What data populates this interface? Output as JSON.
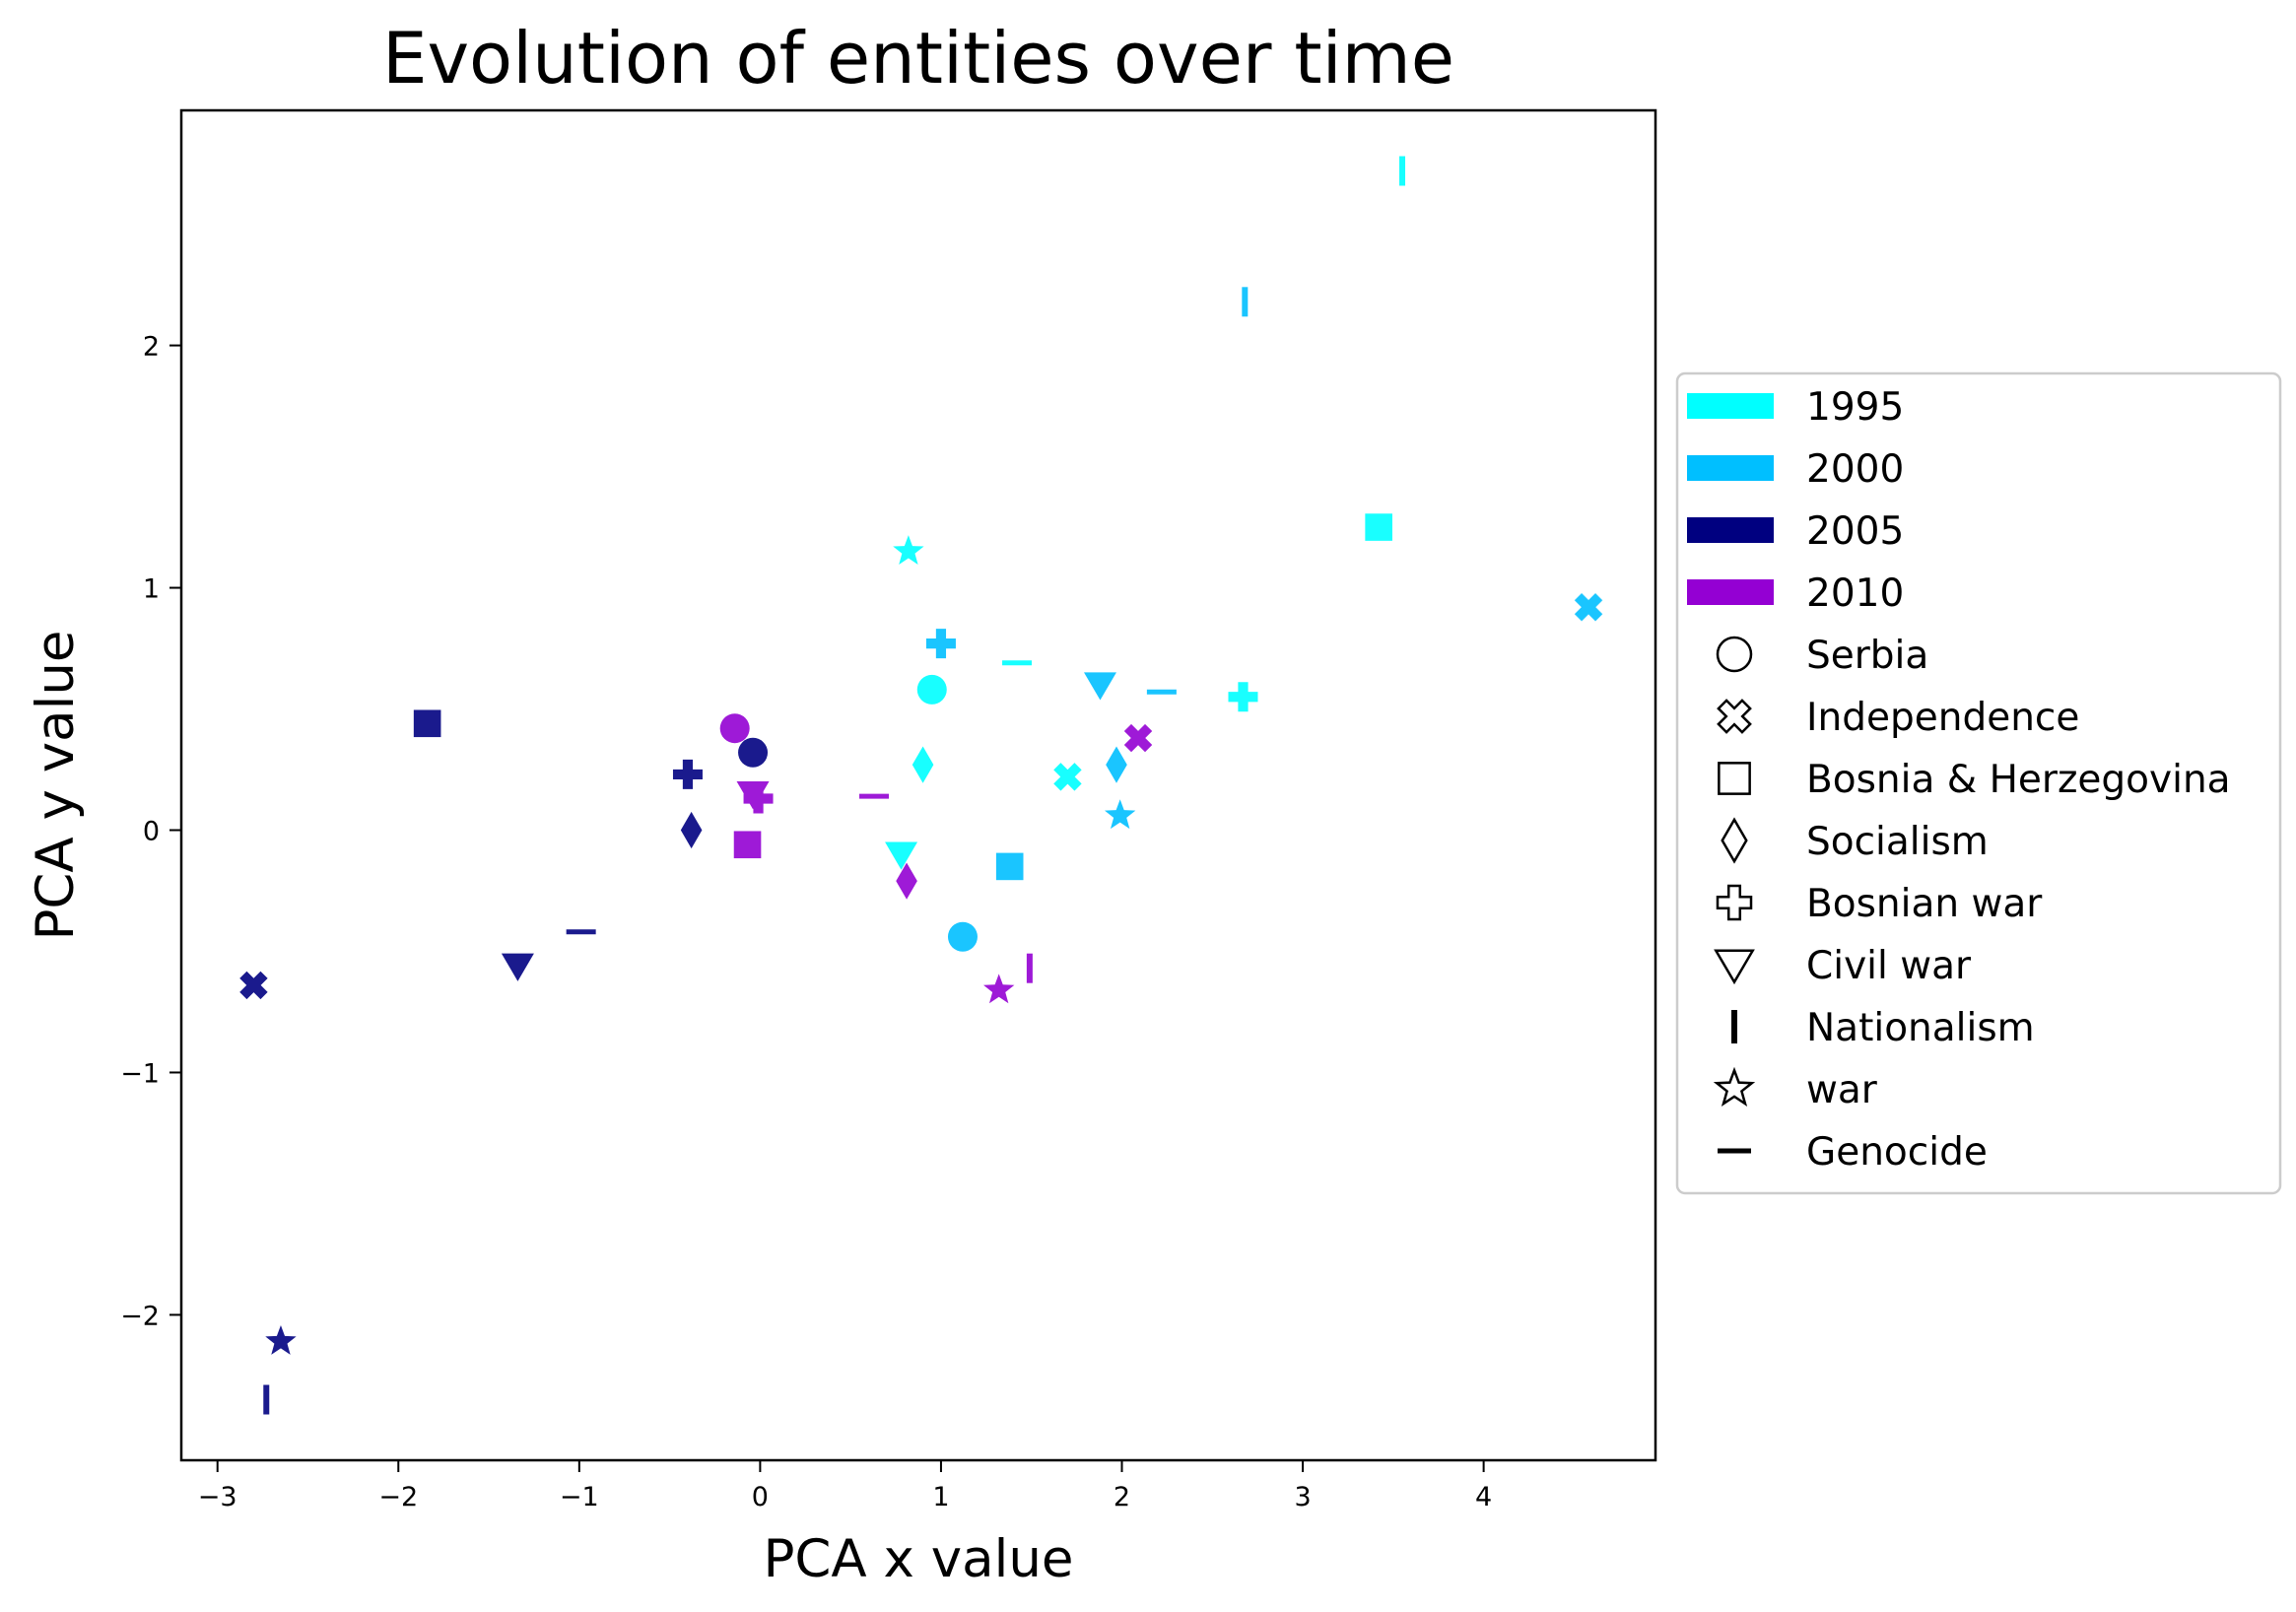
{
  "chart_data": {
    "type": "scatter",
    "title": "Evolution of entities over time",
    "xlabel": "PCA x value",
    "ylabel": "PCA y value",
    "xlim": [
      -3.2,
      4.95
    ],
    "ylim": [
      -2.6,
      2.97
    ],
    "xticks": [
      -3,
      -2,
      -1,
      0,
      1,
      2,
      3,
      4
    ],
    "yticks": [
      -2,
      -1,
      0,
      1,
      2
    ],
    "xtick_labels": [
      "−3",
      "−2",
      "−1",
      "0",
      "1",
      "2",
      "3",
      "4"
    ],
    "ytick_labels": [
      "−2",
      "−1",
      "0",
      "1",
      "2"
    ],
    "grid": false,
    "legend_position": "outside-right",
    "years": [
      {
        "label": "1995",
        "color": "#00FFFF"
      },
      {
        "label": "2000",
        "color": "#00BFFF"
      },
      {
        "label": "2005",
        "color": "#000080"
      },
      {
        "label": "2010",
        "color": "#9400D3"
      }
    ],
    "entities": [
      {
        "label": "Serbia",
        "marker": "circle"
      },
      {
        "label": "Independence",
        "marker": "x-filled"
      },
      {
        "label": "Bosnia & Herzegovina",
        "marker": "square"
      },
      {
        "label": "Socialism",
        "marker": "thin-diamond"
      },
      {
        "label": "Bosnian war",
        "marker": "plus-filled"
      },
      {
        "label": "Civil war",
        "marker": "triangle-down"
      },
      {
        "label": "Nationalism",
        "marker": "vline"
      },
      {
        "label": "war",
        "marker": "star"
      },
      {
        "label": "Genocide",
        "marker": "hline"
      }
    ],
    "series": [
      {
        "year": "1995",
        "points": [
          {
            "entity": "Serbia",
            "x": 0.95,
            "y": 0.58
          },
          {
            "entity": "Independence",
            "x": 1.7,
            "y": 0.22
          },
          {
            "entity": "Bosnia & Herzegovina",
            "x": 3.42,
            "y": 1.25
          },
          {
            "entity": "Socialism",
            "x": 0.9,
            "y": 0.27
          },
          {
            "entity": "Bosnian war",
            "x": 2.67,
            "y": 0.55
          },
          {
            "entity": "Civil war",
            "x": 0.78,
            "y": -0.1
          },
          {
            "entity": "Nationalism",
            "x": 3.55,
            "y": 2.72
          },
          {
            "entity": "war",
            "x": 0.82,
            "y": 1.15
          },
          {
            "entity": "Genocide",
            "x": 1.42,
            "y": 0.69
          }
        ]
      },
      {
        "year": "2000",
        "points": [
          {
            "entity": "Serbia",
            "x": 1.12,
            "y": -0.44
          },
          {
            "entity": "Independence",
            "x": 4.58,
            "y": 0.92
          },
          {
            "entity": "Bosnia & Herzegovina",
            "x": 1.38,
            "y": -0.15
          },
          {
            "entity": "Socialism",
            "x": 1.97,
            "y": 0.27
          },
          {
            "entity": "Bosnian war",
            "x": 1.0,
            "y": 0.77
          },
          {
            "entity": "Civil war",
            "x": 1.88,
            "y": 0.6
          },
          {
            "entity": "Nationalism",
            "x": 2.68,
            "y": 2.18
          },
          {
            "entity": "war",
            "x": 1.99,
            "y": 0.06
          },
          {
            "entity": "Genocide",
            "x": 2.22,
            "y": 0.57
          }
        ]
      },
      {
        "year": "2005",
        "points": [
          {
            "entity": "Serbia",
            "x": -0.04,
            "y": 0.32
          },
          {
            "entity": "Independence",
            "x": -2.8,
            "y": -0.64
          },
          {
            "entity": "Bosnia & Herzegovina",
            "x": -1.84,
            "y": 0.44
          },
          {
            "entity": "Socialism",
            "x": -0.38,
            "y": 0.0
          },
          {
            "entity": "Bosnian war",
            "x": -0.4,
            "y": 0.23
          },
          {
            "entity": "Civil war",
            "x": -1.34,
            "y": -0.56
          },
          {
            "entity": "Nationalism",
            "x": -2.73,
            "y": -2.35
          },
          {
            "entity": "war",
            "x": -2.65,
            "y": -2.11
          },
          {
            "entity": "Genocide",
            "x": -0.99,
            "y": -0.42
          }
        ]
      },
      {
        "year": "2010",
        "points": [
          {
            "entity": "Serbia",
            "x": -0.14,
            "y": 0.42
          },
          {
            "entity": "Independence",
            "x": 2.09,
            "y": 0.38
          },
          {
            "entity": "Bosnia & Herzegovina",
            "x": -0.07,
            "y": -0.06
          },
          {
            "entity": "Socialism",
            "x": 0.81,
            "y": -0.21
          },
          {
            "entity": "Bosnian war",
            "x": -0.01,
            "y": 0.13
          },
          {
            "entity": "Civil war",
            "x": -0.04,
            "y": 0.15
          },
          {
            "entity": "Nationalism",
            "x": 1.49,
            "y": -0.57
          },
          {
            "entity": "war",
            "x": 1.32,
            "y": -0.66
          },
          {
            "entity": "Genocide",
            "x": 0.63,
            "y": 0.14
          }
        ]
      }
    ]
  }
}
